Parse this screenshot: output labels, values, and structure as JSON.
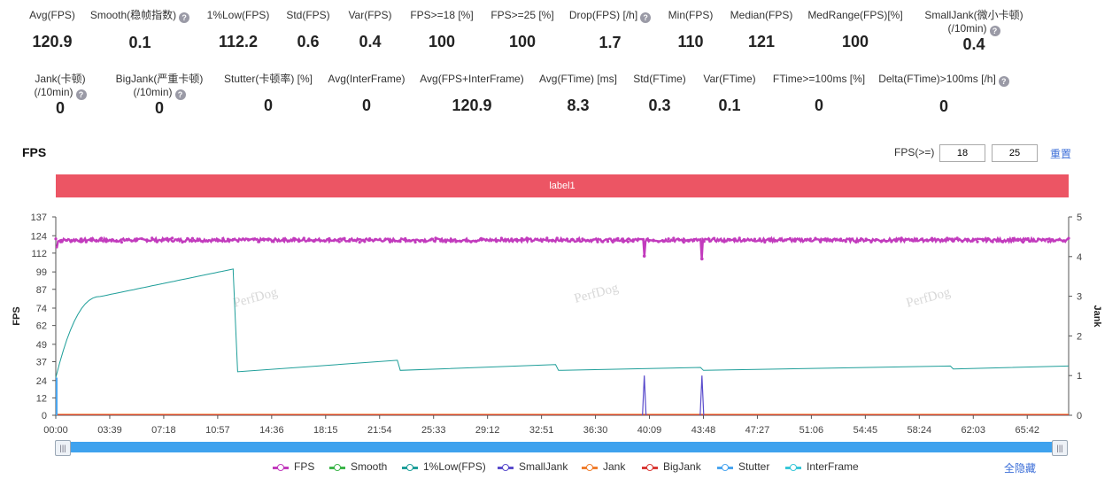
{
  "metrics_row1": [
    {
      "label": "Avg(FPS)",
      "value": "120.9",
      "help": false
    },
    {
      "label": "Smooth(稳帧指数)",
      "value": "0.1",
      "help": true
    },
    {
      "label": "1%Low(FPS)",
      "value": "112.2",
      "help": false
    },
    {
      "label": "Std(FPS)",
      "value": "0.6",
      "help": false
    },
    {
      "label": "Var(FPS)",
      "value": "0.4",
      "help": false
    },
    {
      "label": "FPS>=18 [%]",
      "value": "100",
      "help": false
    },
    {
      "label": "FPS>=25 [%]",
      "value": "100",
      "help": false
    },
    {
      "label": "Drop(FPS) [/h]",
      "value": "1.7",
      "help": true
    },
    {
      "label": "Min(FPS)",
      "value": "110",
      "help": false
    },
    {
      "label": "Median(FPS)",
      "value": "121",
      "help": false
    },
    {
      "label": "MedRange(FPS)[%]",
      "value": "100",
      "help": false
    },
    {
      "label": "SmallJank(微小卡顿)",
      "label2": "(/10min)",
      "value": "0.4",
      "help": true
    }
  ],
  "metrics_row2": [
    {
      "label": "Jank(卡顿)",
      "label2": "(/10min)",
      "value": "0",
      "help": true
    },
    {
      "label": "BigJank(严重卡顿)",
      "label2": "(/10min)",
      "value": "0",
      "help": true
    },
    {
      "label": "Stutter(卡顿率) [%]",
      "value": "0",
      "help": false
    },
    {
      "label": "Avg(InterFrame)",
      "value": "0",
      "help": false
    },
    {
      "label": "Avg(FPS+InterFrame)",
      "value": "120.9",
      "help": false
    },
    {
      "label": "Avg(FTime) [ms]",
      "value": "8.3",
      "help": false
    },
    {
      "label": "Std(FTime)",
      "value": "0.3",
      "help": false
    },
    {
      "label": "Var(FTime)",
      "value": "0.1",
      "help": false
    },
    {
      "label": "FTime>=100ms [%]",
      "value": "0",
      "help": false
    },
    {
      "label": "Delta(FTime)>100ms [/h]",
      "value": "0",
      "help": true
    }
  ],
  "help_glyph": "?",
  "section": {
    "title": "FPS",
    "threshold_label": "FPS(>=)",
    "threshold_1": "18",
    "threshold_2": "25",
    "reset_label": "重置",
    "label_bar": "label1"
  },
  "watermark": "PerfDog",
  "chart_data": {
    "type": "line",
    "ylabel": "FPS",
    "y2label": "Jank",
    "y_ticks": [
      0,
      12,
      24,
      37,
      49,
      62,
      74,
      87,
      99,
      112,
      124,
      137
    ],
    "ylim": [
      0,
      137
    ],
    "y2_ticks": [
      0,
      1,
      2,
      3,
      4,
      5
    ],
    "y2lim": [
      0,
      5
    ],
    "x_ticks": [
      "00:00",
      "03:39",
      "07:18",
      "10:57",
      "14:36",
      "18:15",
      "21:54",
      "25:33",
      "29:12",
      "32:51",
      "36:30",
      "40:09",
      "43:48",
      "47:27",
      "51:06",
      "54:45",
      "58:24",
      "62:03",
      "65:42"
    ],
    "x_range_min": [
      0,
      68.5
    ],
    "series": [
      {
        "name": "FPS",
        "color": "#c23bbd",
        "description": "approx 121 constant with dips to 110 near 40:09 and 43:48"
      },
      {
        "name": "Smooth",
        "color": "#3db54a"
      },
      {
        "name": "1%Low(FPS)",
        "color": "#1e9e99",
        "points_min": [
          [
            0,
            0
          ],
          [
            1,
            55
          ],
          [
            3,
            80
          ],
          [
            6,
            90
          ],
          [
            9,
            96
          ],
          [
            12,
            99
          ],
          [
            12.3,
            30
          ],
          [
            23.1,
            38
          ],
          [
            23.3,
            31
          ],
          [
            33.8,
            35
          ],
          [
            34,
            31
          ],
          [
            43.6,
            33
          ],
          [
            43.8,
            31
          ],
          [
            60.5,
            34
          ],
          [
            60.7,
            32
          ],
          [
            68.5,
            34
          ]
        ]
      },
      {
        "name": "SmallJank",
        "color": "#5a4ccc",
        "spikes_min": [
          39.8,
          43.7
        ],
        "spike_value": 1
      },
      {
        "name": "Jank",
        "color": "#f07e2e"
      },
      {
        "name": "BigJank",
        "color": "#d93a36"
      },
      {
        "name": "Stutter",
        "color": "#4aa5ef"
      },
      {
        "name": "InterFrame",
        "color": "#38c7d8"
      }
    ]
  },
  "legend_hide_all": "全隐藏"
}
